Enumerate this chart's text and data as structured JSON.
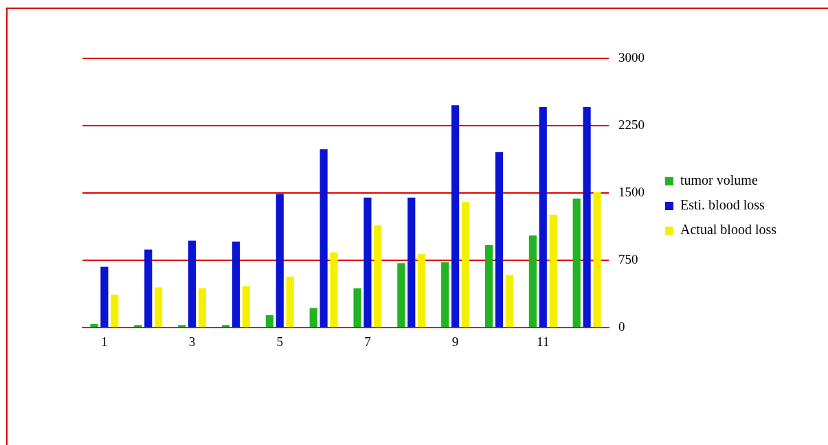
{
  "chart_data": {
    "type": "bar",
    "categories": [
      "1",
      null,
      "3",
      null,
      "5",
      null,
      "7",
      null,
      "9",
      null,
      "11",
      null
    ],
    "series": [
      {
        "name": "tumor volume",
        "color": "#22b322",
        "values": [
          40,
          30,
          30,
          30,
          140,
          220,
          440,
          720,
          730,
          920,
          1030,
          1440
        ]
      },
      {
        "name": "Esti. blood loss",
        "color": "#0a14d2",
        "values": [
          680,
          870,
          970,
          960,
          1490,
          1990,
          1450,
          1450,
          2480,
          1960,
          2460,
          2460
        ]
      },
      {
        "name": "Actual blood loss",
        "color": "#f5f000",
        "values": [
          370,
          450,
          440,
          460,
          570,
          840,
          1140,
          820,
          1400,
          590,
          1260,
          1510
        ]
      }
    ],
    "ylim": [
      0,
      3000
    ],
    "yticks": [
      0,
      750,
      1500,
      2250,
      3000
    ],
    "grid": "y",
    "legend": "right"
  }
}
